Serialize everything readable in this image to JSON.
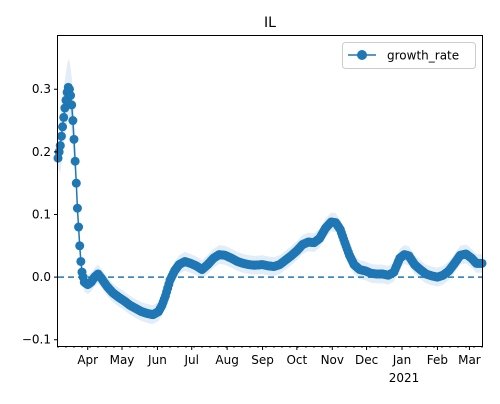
{
  "chart_data": {
    "type": "line",
    "title": "IL",
    "xlabel": "",
    "ylabel": "",
    "x_range": [
      "2020-03-06",
      "2021-03-12"
    ],
    "ylim": [
      -0.11,
      0.385
    ],
    "y_ticks": [
      -0.1,
      0.0,
      0.1,
      0.2,
      0.3
    ],
    "y_tick_labels": [
      "−0.1",
      "0.0",
      "0.1",
      "0.2",
      "0.3"
    ],
    "x_ticks": [
      {
        "date": "2020-04-01",
        "label": "Apr"
      },
      {
        "date": "2020-05-01",
        "label": "May"
      },
      {
        "date": "2020-06-01",
        "label": "Jun"
      },
      {
        "date": "2020-07-01",
        "label": "Jul"
      },
      {
        "date": "2020-08-01",
        "label": "Aug"
      },
      {
        "date": "2020-09-01",
        "label": "Sep"
      },
      {
        "date": "2020-10-01",
        "label": "Oct"
      },
      {
        "date": "2020-11-01",
        "label": "Nov"
      },
      {
        "date": "2020-12-01",
        "label": "Dec"
      },
      {
        "date": "2021-01-01",
        "label": "Jan"
      },
      {
        "date": "2021-02-01",
        "label": "Feb"
      },
      {
        "date": "2021-03-01",
        "label": "Mar"
      }
    ],
    "year_label": "2021",
    "legend": {
      "position": "top-right",
      "entries": [
        "growth_rate"
      ]
    },
    "reference_line": {
      "y": 0.0,
      "style": "dashed"
    },
    "grid": false,
    "series": [
      {
        "name": "growth_rate",
        "color": "#1f77b4",
        "band_color": "#d6e6f4",
        "band_halfwidth": 0.015,
        "points": [
          [
            "2020-03-06",
            0.19
          ],
          [
            "2020-03-08",
            0.21
          ],
          [
            "2020-03-10",
            0.24
          ],
          [
            "2020-03-12",
            0.27
          ],
          [
            "2020-03-14",
            0.295
          ],
          [
            "2020-03-15",
            0.303
          ],
          [
            "2020-03-16",
            0.3
          ],
          [
            "2020-03-17",
            0.29
          ],
          [
            "2020-03-18",
            0.275
          ],
          [
            "2020-03-19",
            0.25
          ],
          [
            "2020-03-20",
            0.22
          ],
          [
            "2020-03-21",
            0.185
          ],
          [
            "2020-03-22",
            0.15
          ],
          [
            "2020-03-23",
            0.11
          ],
          [
            "2020-03-24",
            0.08
          ],
          [
            "2020-03-25",
            0.05
          ],
          [
            "2020-03-26",
            0.025
          ],
          [
            "2020-03-27",
            0.008
          ],
          [
            "2020-03-29",
            -0.008
          ],
          [
            "2020-04-01",
            -0.012
          ],
          [
            "2020-04-04",
            -0.008
          ],
          [
            "2020-04-07",
            0.0
          ],
          [
            "2020-04-10",
            0.005
          ],
          [
            "2020-04-13",
            -0.002
          ],
          [
            "2020-04-18",
            -0.015
          ],
          [
            "2020-04-23",
            -0.025
          ],
          [
            "2020-04-28",
            -0.032
          ],
          [
            "2020-05-03",
            -0.038
          ],
          [
            "2020-05-08",
            -0.045
          ],
          [
            "2020-05-13",
            -0.05
          ],
          [
            "2020-05-18",
            -0.055
          ],
          [
            "2020-05-23",
            -0.058
          ],
          [
            "2020-05-28",
            -0.06
          ],
          [
            "2020-06-02",
            -0.055
          ],
          [
            "2020-06-05",
            -0.045
          ],
          [
            "2020-06-08",
            -0.03
          ],
          [
            "2020-06-12",
            -0.005
          ],
          [
            "2020-06-16",
            0.01
          ],
          [
            "2020-06-20",
            0.02
          ],
          [
            "2020-06-25",
            0.025
          ],
          [
            "2020-06-30",
            0.022
          ],
          [
            "2020-07-05",
            0.018
          ],
          [
            "2020-07-10",
            0.012
          ],
          [
            "2020-07-15",
            0.02
          ],
          [
            "2020-07-20",
            0.03
          ],
          [
            "2020-07-25",
            0.036
          ],
          [
            "2020-07-30",
            0.035
          ],
          [
            "2020-08-05",
            0.03
          ],
          [
            "2020-08-10",
            0.025
          ],
          [
            "2020-08-15",
            0.022
          ],
          [
            "2020-08-20",
            0.02
          ],
          [
            "2020-08-25",
            0.019
          ],
          [
            "2020-09-01",
            0.02
          ],
          [
            "2020-09-06",
            0.018
          ],
          [
            "2020-09-11",
            0.017
          ],
          [
            "2020-09-16",
            0.02
          ],
          [
            "2020-09-21",
            0.027
          ],
          [
            "2020-09-26",
            0.034
          ],
          [
            "2020-10-01",
            0.042
          ],
          [
            "2020-10-06",
            0.052
          ],
          [
            "2020-10-11",
            0.056
          ],
          [
            "2020-10-16",
            0.055
          ],
          [
            "2020-10-21",
            0.062
          ],
          [
            "2020-10-26",
            0.078
          ],
          [
            "2020-10-31",
            0.088
          ],
          [
            "2020-11-04",
            0.087
          ],
          [
            "2020-11-08",
            0.076
          ],
          [
            "2020-11-12",
            0.055
          ],
          [
            "2020-11-16",
            0.035
          ],
          [
            "2020-11-20",
            0.02
          ],
          [
            "2020-11-25",
            0.012
          ],
          [
            "2020-11-30",
            0.01
          ],
          [
            "2020-12-05",
            0.006
          ],
          [
            "2020-12-10",
            0.005
          ],
          [
            "2020-12-15",
            0.005
          ],
          [
            "2020-12-20",
            0.003
          ],
          [
            "2020-12-25",
            0.008
          ],
          [
            "2020-12-30",
            0.03
          ],
          [
            "2021-01-03",
            0.036
          ],
          [
            "2021-01-07",
            0.034
          ],
          [
            "2021-01-12",
            0.02
          ],
          [
            "2021-01-17",
            0.012
          ],
          [
            "2021-01-22",
            0.005
          ],
          [
            "2021-01-27",
            0.002
          ],
          [
            "2021-02-01",
            0.0
          ],
          [
            "2021-02-06",
            0.003
          ],
          [
            "2021-02-11",
            0.01
          ],
          [
            "2021-02-16",
            0.022
          ],
          [
            "2021-02-21",
            0.035
          ],
          [
            "2021-02-26",
            0.037
          ],
          [
            "2021-03-03",
            0.03
          ],
          [
            "2021-03-07",
            0.022
          ],
          [
            "2021-03-12",
            0.022
          ]
        ]
      }
    ]
  }
}
